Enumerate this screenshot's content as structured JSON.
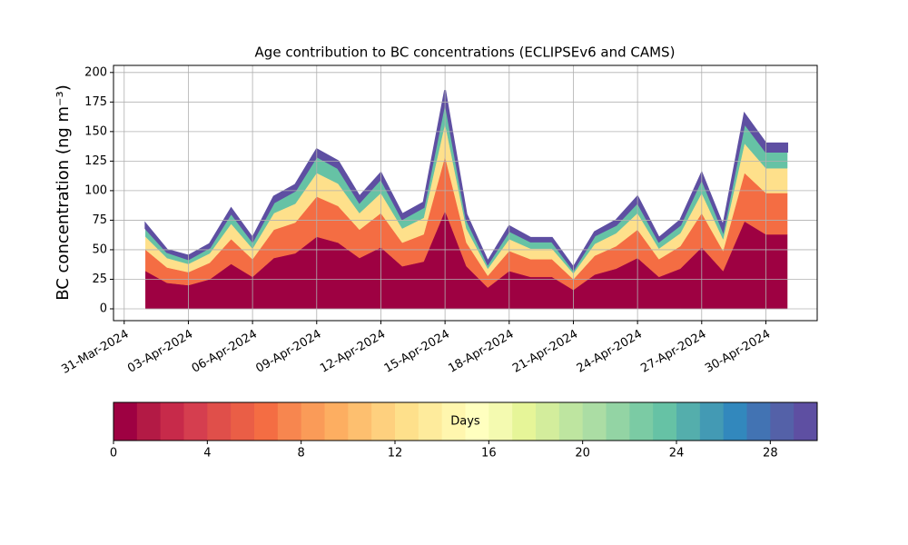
{
  "chart_data": {
    "type": "stacked_area",
    "title": "Age contribution to BC concentrations (ECLIPSEv6 and CAMS)",
    "y_label": "BC concentration (ng m⁻³)",
    "x": [
      "2024-04-01",
      "2024-04-02",
      "2024-04-03",
      "2024-04-04",
      "2024-04-05",
      "2024-04-06",
      "2024-04-07",
      "2024-04-08",
      "2024-04-09",
      "2024-04-10",
      "2024-04-11",
      "2024-04-12",
      "2024-04-13",
      "2024-04-14",
      "2024-04-15",
      "2024-04-16",
      "2024-04-17",
      "2024-04-18",
      "2024-04-19",
      "2024-04-20",
      "2024-04-21",
      "2024-04-22",
      "2024-04-23",
      "2024-04-24",
      "2024-04-25",
      "2024-04-26",
      "2024-04-27",
      "2024-04-28",
      "2024-04-29",
      "2024-04-30",
      "2024-05-01"
    ],
    "series": [
      {
        "color": "#9e0142",
        "values": [
          32,
          22,
          20,
          25,
          38,
          27,
          43,
          47,
          61,
          56,
          43,
          52,
          36,
          40,
          83,
          36,
          18,
          32,
          27,
          27,
          16,
          29,
          34,
          43,
          27,
          34,
          52,
          32,
          74,
          63,
          63
        ]
      },
      {
        "color": "#f46d43",
        "values": [
          18,
          13,
          11,
          14,
          21,
          15,
          24,
          26,
          34,
          31,
          24,
          29,
          20,
          23,
          46,
          20,
          10,
          17,
          15,
          15,
          9,
          16,
          19,
          24,
          15,
          19,
          29,
          17,
          41,
          35,
          35
        ]
      },
      {
        "color": "#fee08b",
        "values": [
          11,
          8,
          7,
          8,
          13,
          9,
          14,
          16,
          20,
          19,
          14,
          17,
          12,
          14,
          28,
          12,
          6,
          10,
          9,
          9,
          5,
          10,
          11,
          14,
          9,
          11,
          17,
          10,
          25,
          21,
          21
        ]
      },
      {
        "color": "#66c2a5",
        "values": [
          7,
          5,
          4,
          5,
          9,
          6,
          9,
          11,
          14,
          13,
          9,
          12,
          8,
          9,
          19,
          8,
          4,
          7,
          6,
          6,
          3,
          7,
          7,
          9,
          6,
          7,
          12,
          7,
          17,
          14,
          14
        ]
      },
      {
        "color": "#5e4fa2",
        "values": [
          4,
          2,
          3,
          3,
          4,
          3,
          5,
          5,
          6,
          6,
          5,
          5,
          4,
          4,
          9,
          4,
          2,
          4,
          3,
          3,
          2,
          3,
          4,
          5,
          3,
          4,
          5,
          4,
          8,
          7,
          7
        ]
      }
    ],
    "xlim": [
      "2024-03-31",
      "2024-05-02"
    ],
    "xticks": [
      {
        "value": "2024-03-31",
        "label": "31-Mar-2024"
      },
      {
        "value": "2024-04-03",
        "label": "03-Apr-2024"
      },
      {
        "value": "2024-04-06",
        "label": "06-Apr-2024"
      },
      {
        "value": "2024-04-09",
        "label": "09-Apr-2024"
      },
      {
        "value": "2024-04-12",
        "label": "12-Apr-2024"
      },
      {
        "value": "2024-04-15",
        "label": "15-Apr-2024"
      },
      {
        "value": "2024-04-18",
        "label": "18-Apr-2024"
      },
      {
        "value": "2024-04-21",
        "label": "21-Apr-2024"
      },
      {
        "value": "2024-04-24",
        "label": "24-Apr-2024"
      },
      {
        "value": "2024-04-27",
        "label": "27-Apr-2024"
      },
      {
        "value": "2024-04-30",
        "label": "30-Apr-2024"
      }
    ],
    "ylim": [
      -10,
      206
    ],
    "yticks": [
      0,
      25,
      50,
      75,
      100,
      125,
      150,
      175,
      200
    ],
    "grid": true,
    "colorbar": {
      "label": "Days",
      "lim": [
        0,
        30
      ],
      "ticks": [
        0,
        4,
        8,
        12,
        16,
        20,
        24,
        28
      ],
      "colors": [
        "#9e0142",
        "#b31a45",
        "#c72a4a",
        "#d53e4f",
        "#e04f4a",
        "#ea5e46",
        "#f46d43",
        "#f7864f",
        "#fa9b58",
        "#fdae61",
        "#fdbf6f",
        "#fed07e",
        "#fee08b",
        "#feeb9c",
        "#fff6ae",
        "#ffffbf",
        "#f4fab0",
        "#e6f598",
        "#d3ed9c",
        "#bee5a0",
        "#abdda4",
        "#93d4a4",
        "#7bcba4",
        "#66c2a5",
        "#54aeac",
        "#439ab4",
        "#3288bd",
        "#4273b3",
        "#5461a8",
        "#5e4fa2"
      ]
    }
  }
}
